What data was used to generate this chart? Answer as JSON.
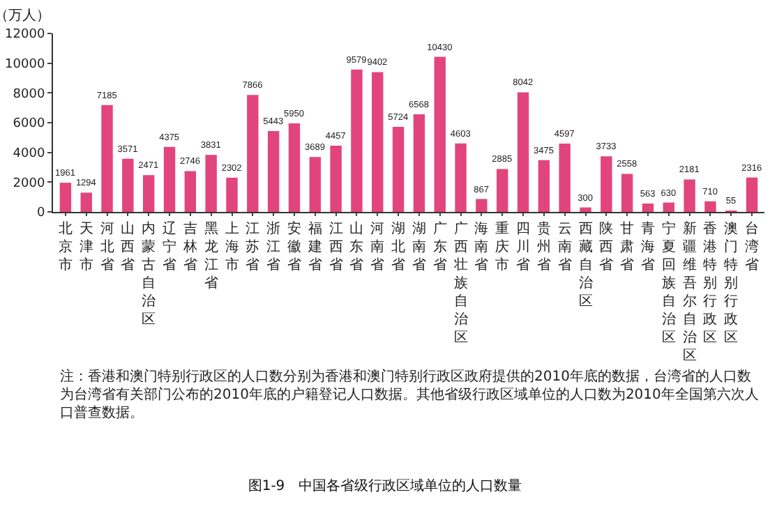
{
  "chart_data": {
    "type": "bar",
    "title": "图1-9　中国各省级行政区域单位的人口数量",
    "ylabel": "（万人）",
    "categories": [
      "北京市",
      "天津市",
      "河北省",
      "山西省",
      "内蒙古自治区",
      "辽宁省",
      "吉林省",
      "黑龙江省",
      "上海市",
      "江苏省",
      "浙江省",
      "安徽省",
      "福建省",
      "江西省",
      "山东省",
      "河南省",
      "湖北省",
      "湖南省",
      "广东省",
      "广西壮族自治区",
      "海南省",
      "重庆市",
      "四川省",
      "贵州省",
      "云南省",
      "西藏自治区",
      "陕西省",
      "甘肃省",
      "青海省",
      "宁夏回族自治区",
      "新疆维吾尔自治区",
      "香港特别行政区",
      "澳门特别行政区",
      "台湾省"
    ],
    "values": [
      1961,
      1294,
      7185,
      3571,
      2471,
      4375,
      2746,
      3831,
      2302,
      7866,
      5443,
      5950,
      3689,
      4457,
      9579,
      9402,
      5724,
      6568,
      10430,
      4603,
      867,
      2885,
      8042,
      3475,
      4597,
      300,
      3733,
      2558,
      563,
      630,
      2181,
      710,
      55,
      2316
    ],
    "color": "#e2457c",
    "data_labels": true,
    "ylim": [
      0,
      12000
    ],
    "yticks": [
      0,
      2000,
      4000,
      6000,
      8000,
      10000,
      12000
    ],
    "legend": false,
    "annotations": [
      "注：香港和澳门特别行政区的人口数分别为香港和澳门特别行政区政府提供的2010年底的数据，台湾省的人口数为台湾省有关部门公布的2010年底的户籍登记人口数据。其他省级行政区域单位的人口数为2010年全国第六次人口普查数据。"
    ]
  }
}
